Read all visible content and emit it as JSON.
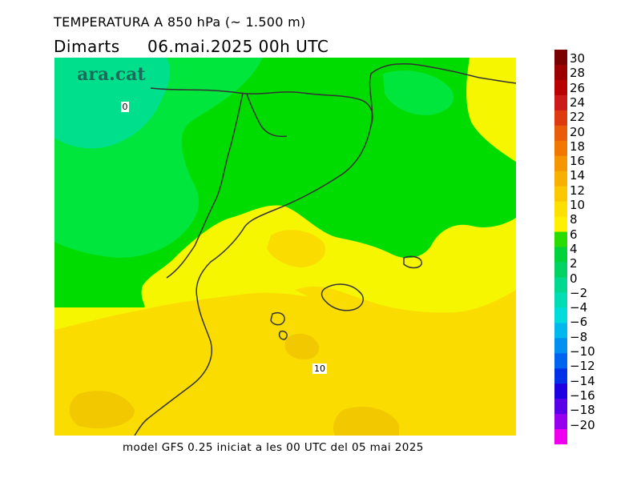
{
  "header": {
    "title": "TEMPERATURA A 850 hPa (~ 1.500 m)",
    "subtitle": "Dimarts     06.mai.2025 00h UTC"
  },
  "map": {
    "logo": "ara.cat",
    "contour_labels": [
      "0",
      "10"
    ],
    "colors": {
      "teal": "#00e08c",
      "green_light": "#00e63c",
      "green": "#00dc00",
      "yellow": "#f6f600",
      "gold": "#fadc00",
      "gold_dark": "#f2c800",
      "coast": "#333333"
    }
  },
  "footer": {
    "text": "model GFS 0.25 iniciat a les 00 UTC del 05 mai 2025"
  },
  "colorbar": {
    "labels": [
      "30",
      "28",
      "26",
      "24",
      "22",
      "20",
      "18",
      "16",
      "14",
      "12",
      "10",
      "8",
      "6",
      "4",
      "2",
      "0",
      "−2",
      "−4",
      "−6",
      "−8",
      "−10",
      "−12",
      "−14",
      "−16",
      "−18",
      "−20"
    ],
    "colors": [
      "#7a0000",
      "#9c0000",
      "#b80000",
      "#cc1a1a",
      "#dd3a10",
      "#e85c0a",
      "#f07800",
      "#f59600",
      "#f8b000",
      "#fbc800",
      "#fde000",
      "#fff000",
      "#28dc00",
      "#00d23c",
      "#00d264",
      "#00d890",
      "#00dcb4",
      "#00dcdc",
      "#00b8ee",
      "#0090f0",
      "#0064f0",
      "#0030e8",
      "#1e00e0",
      "#5a00e6",
      "#9600ee",
      "#ee00ee"
    ]
  }
}
